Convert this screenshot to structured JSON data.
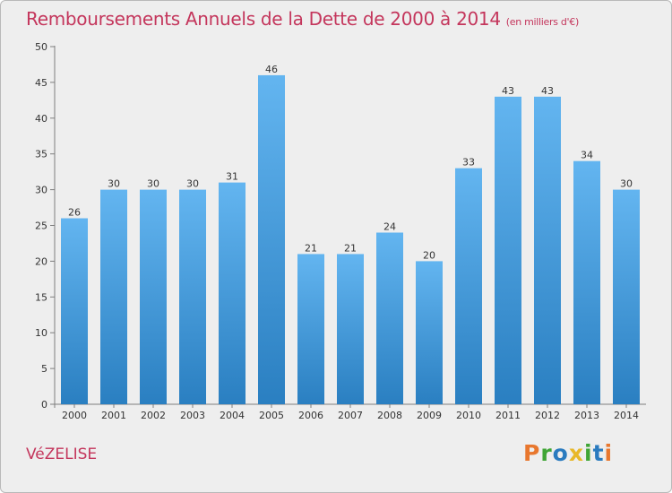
{
  "header": {
    "title": "Remboursements Annuels de la Dette de 2000 à 2014",
    "unit": "(en milliers d'€)"
  },
  "footer": {
    "commune": "VéZELISE"
  },
  "logo": {
    "text": "Proxiti",
    "letters": [
      "P",
      "r",
      "o",
      "x",
      "i",
      "t",
      "i"
    ],
    "colors": [
      "#e8772e",
      "#3fa535",
      "#2a7bbf",
      "#e8b82a",
      "#3fa535",
      "#2a7bbf",
      "#e8772e"
    ]
  },
  "colors": {
    "bar_light": "#63b5f0",
    "bar_dark": "#2a7fc1",
    "title": "#c4365c"
  },
  "chart_data": {
    "type": "bar",
    "title": "Remboursements Annuels de la Dette de 2000 à 2014",
    "xlabel": "",
    "ylabel": "(en milliers d'€)",
    "categories": [
      "2000",
      "2001",
      "2002",
      "2003",
      "2004",
      "2005",
      "2006",
      "2007",
      "2008",
      "2009",
      "2010",
      "2011",
      "2012",
      "2013",
      "2014"
    ],
    "values": [
      26,
      30,
      30,
      30,
      31,
      46,
      21,
      21,
      24,
      20,
      33,
      43,
      43,
      34,
      30
    ],
    "ylim": [
      0,
      50
    ],
    "yticks": [
      0,
      5,
      10,
      15,
      20,
      25,
      30,
      35,
      40,
      45,
      50
    ],
    "grid": false
  }
}
